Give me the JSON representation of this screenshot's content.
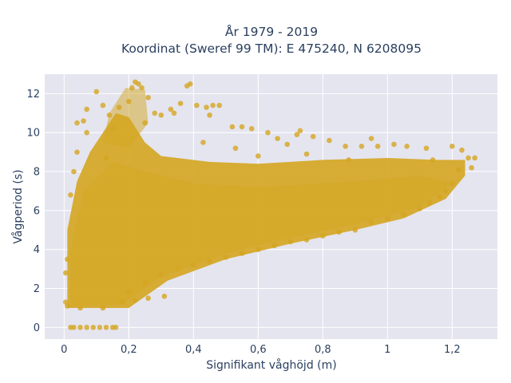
{
  "chart_data": {
    "type": "scatter",
    "title": "År 1979 - 2019",
    "subtitle": "Koordinat (Sweref 99 TM): E 475240, N 6208095",
    "xlabel": "Signifikant våghöjd (m)",
    "ylabel": "Vågperiod (s)",
    "xlim": [
      -0.06,
      1.34
    ],
    "ylim": [
      -0.6,
      13.0
    ],
    "x_ticks": [
      0,
      0.2,
      0.4,
      0.6,
      0.8,
      1.0,
      1.2
    ],
    "x_tick_labels": [
      "0",
      "0,2",
      "0,4",
      "0,6",
      "0,8",
      "1",
      "1,2"
    ],
    "y_ticks": [
      0,
      2,
      4,
      6,
      8,
      10,
      12
    ],
    "y_tick_labels": [
      "0",
      "2",
      "4",
      "6",
      "8",
      "10",
      "12"
    ],
    "grid": true,
    "legend": "none",
    "colors": {
      "marker": "#d4a520",
      "plot_bg": "#e5e5f0",
      "grid": "#ffffff",
      "text": "#2a3f5f"
    },
    "series": [
      {
        "points": [
          [
            0.005,
            2.8
          ],
          [
            0.005,
            1.3
          ],
          [
            0.01,
            1.1
          ],
          [
            0.01,
            3.5
          ],
          [
            0.02,
            0.0
          ],
          [
            0.03,
            0.0
          ],
          [
            0.05,
            0.0
          ],
          [
            0.07,
            0.0
          ],
          [
            0.09,
            0.0
          ],
          [
            0.11,
            0.0
          ],
          [
            0.13,
            0.0
          ],
          [
            0.15,
            0.0
          ],
          [
            0.16,
            0.0
          ],
          [
            0.02,
            6.8
          ],
          [
            0.03,
            8.0
          ],
          [
            0.04,
            9.0
          ],
          [
            0.04,
            10.5
          ],
          [
            0.06,
            10.6
          ],
          [
            0.07,
            10.0
          ],
          [
            0.07,
            11.2
          ],
          [
            0.1,
            12.1
          ],
          [
            0.12,
            11.4
          ],
          [
            0.14,
            10.9
          ],
          [
            0.15,
            10.2
          ],
          [
            0.13,
            8.7
          ],
          [
            0.17,
            11.3
          ],
          [
            0.2,
            11.6
          ],
          [
            0.21,
            12.3
          ],
          [
            0.22,
            12.6
          ],
          [
            0.23,
            12.5
          ],
          [
            0.24,
            12.3
          ],
          [
            0.26,
            11.8
          ],
          [
            0.28,
            11.0
          ],
          [
            0.25,
            10.5
          ],
          [
            0.3,
            10.9
          ],
          [
            0.33,
            11.2
          ],
          [
            0.36,
            11.5
          ],
          [
            0.38,
            12.4
          ],
          [
            0.39,
            12.5
          ],
          [
            0.41,
            11.4
          ],
          [
            0.44,
            11.3
          ],
          [
            0.46,
            11.4
          ],
          [
            0.48,
            11.4
          ],
          [
            0.45,
            10.9
          ],
          [
            0.52,
            10.3
          ],
          [
            0.55,
            10.3
          ],
          [
            0.58,
            10.2
          ],
          [
            0.63,
            10.0
          ],
          [
            0.66,
            9.7
          ],
          [
            0.69,
            9.4
          ],
          [
            0.72,
            9.9
          ],
          [
            0.73,
            10.1
          ],
          [
            0.77,
            9.8
          ],
          [
            0.82,
            9.6
          ],
          [
            0.87,
            9.3
          ],
          [
            0.92,
            9.3
          ],
          [
            0.97,
            9.3
          ],
          [
            1.02,
            9.4
          ],
          [
            1.06,
            9.3
          ],
          [
            0.95,
            9.7
          ],
          [
            1.12,
            9.2
          ],
          [
            1.14,
            8.6
          ],
          [
            1.2,
            9.3
          ],
          [
            1.23,
            9.1
          ],
          [
            1.25,
            8.7
          ],
          [
            1.27,
            8.7
          ],
          [
            1.26,
            8.2
          ],
          [
            1.22,
            8.1
          ],
          [
            1.2,
            7.4
          ],
          [
            1.18,
            7.0
          ],
          [
            1.16,
            6.7
          ],
          [
            1.13,
            6.4
          ],
          [
            1.1,
            6.1
          ],
          [
            1.05,
            5.8
          ],
          [
            1.0,
            5.6
          ],
          [
            0.95,
            5.4
          ],
          [
            0.9,
            5.0
          ],
          [
            0.85,
            4.9
          ],
          [
            0.8,
            4.7
          ],
          [
            0.75,
            4.5
          ],
          [
            0.7,
            4.4
          ],
          [
            0.65,
            4.2
          ],
          [
            0.6,
            4.0
          ],
          [
            0.55,
            3.8
          ],
          [
            0.5,
            3.6
          ],
          [
            0.45,
            3.4
          ],
          [
            0.4,
            3.2
          ],
          [
            0.35,
            3.0
          ],
          [
            0.3,
            2.7
          ],
          [
            0.25,
            2.3
          ],
          [
            0.2,
            1.8
          ],
          [
            0.18,
            1.3
          ],
          [
            0.22,
            1.4
          ],
          [
            0.26,
            1.5
          ],
          [
            0.31,
            1.6
          ],
          [
            0.12,
            1.0
          ],
          [
            0.05,
            1.0
          ],
          [
            0.34,
            11.0
          ],
          [
            0.43,
            9.5
          ],
          [
            0.53,
            9.2
          ],
          [
            0.6,
            8.8
          ],
          [
            0.75,
            8.9
          ],
          [
            0.88,
            8.6
          ]
        ]
      }
    ]
  }
}
